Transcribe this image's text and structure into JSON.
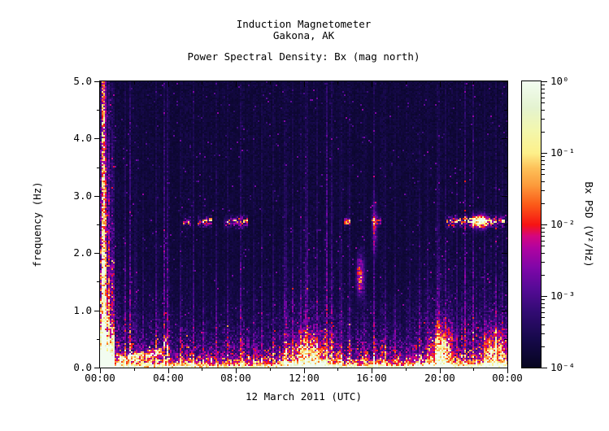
{
  "header": {
    "title_line1": "Induction Magnetometer",
    "title_line2": "Gakona, AK",
    "subtitle": "Power Spectral Density: Bx (mag north)"
  },
  "chart_data": {
    "type": "heatmap",
    "subtype": "spectrogram",
    "title": "Induction Magnetometer Gakona, AK",
    "subtitle": "Power Spectral Density: Bx (mag north)",
    "xlabel": "12 March 2011 (UTC)",
    "ylabel": "frequency (Hz)",
    "x_range_hours": [
      0,
      24
    ],
    "y_range_hz": [
      0.0,
      5.0
    ],
    "z_range_v2hz": [
      "1e-4",
      "1e0"
    ],
    "x_ticks": [
      {
        "hour": 0,
        "label": "00:00"
      },
      {
        "hour": 4,
        "label": "04:00"
      },
      {
        "hour": 8,
        "label": "08:00"
      },
      {
        "hour": 12,
        "label": "12:00"
      },
      {
        "hour": 16,
        "label": "16:00"
      },
      {
        "hour": 20,
        "label": "20:00"
      },
      {
        "hour": 24,
        "label": "00:00"
      }
    ],
    "x_minor_tick_hours": [
      2,
      6,
      10,
      14,
      18,
      22
    ],
    "y_ticks": [
      {
        "hz": 0,
        "label": "0.0"
      },
      {
        "hz": 1,
        "label": "1.0"
      },
      {
        "hz": 2,
        "label": "2.0"
      },
      {
        "hz": 3,
        "label": "3.0"
      },
      {
        "hz": 4,
        "label": "4.0"
      },
      {
        "hz": 5,
        "label": "5.0"
      }
    ],
    "y_minor_tick_hz": [
      0.5,
      1.5,
      2.5,
      3.5,
      4.5
    ],
    "colorbar": {
      "title": "Bx PSD (V²/Hz)",
      "tick_labels": [
        "10⁰",
        "10⁻¹",
        "10⁻²",
        "10⁻³",
        "10⁻⁴"
      ],
      "tick_exponents": [
        0,
        -1,
        -2,
        -3,
        -4
      ],
      "stops": [
        [
          0.0,
          "#06051f"
        ],
        [
          0.1,
          "#16094a"
        ],
        [
          0.2,
          "#330b74"
        ],
        [
          0.28,
          "#570a97"
        ],
        [
          0.35,
          "#7f06a8"
        ],
        [
          0.42,
          "#b103a0"
        ],
        [
          0.46,
          "#d40680"
        ],
        [
          0.5,
          "#f61313"
        ],
        [
          0.57,
          "#fb5a18"
        ],
        [
          0.64,
          "#fc9c3c"
        ],
        [
          0.7,
          "#fdc25a"
        ],
        [
          0.75,
          "#fdf08a"
        ],
        [
          0.83,
          "#f3f7ad"
        ],
        [
          0.91,
          "#e4f3d0"
        ],
        [
          1.0,
          "#f2fcf0"
        ]
      ]
    },
    "features": {
      "background_level": 0.035,
      "bottom_band": {
        "f_scale_hz": 0.07,
        "hours": [
          1.0,
          0.8,
          0.52,
          0.55,
          0.6,
          0.52,
          0.5,
          0.55,
          0.58,
          0.48,
          0.5,
          0.8,
          0.95,
          0.85,
          0.55,
          0.5,
          0.68,
          0.62,
          0.5,
          0.72,
          0.92,
          0.6,
          0.68,
          0.75,
          0.7
        ]
      },
      "haze": {
        "amp": 0.4,
        "hours": [
          2.6,
          0.75,
          0.5,
          0.52,
          0.6,
          0.45,
          0.42,
          0.46,
          0.55,
          0.45,
          0.45,
          0.6,
          0.8,
          0.7,
          0.55,
          0.5,
          0.6,
          0.5,
          0.45,
          0.6,
          0.85,
          0.65,
          0.7,
          0.72,
          0.65
        ]
      },
      "stripes": [
        [
          0.18,
          0.07,
          0.8,
          8
        ],
        [
          0.32,
          0.05,
          0.45,
          6
        ],
        [
          0.55,
          0.06,
          0.3,
          3
        ],
        [
          1.45,
          0.055,
          0.22,
          2.5
        ],
        [
          1.75,
          0.055,
          0.28,
          4
        ],
        [
          2.1,
          0.055,
          0.18,
          2
        ],
        [
          2.5,
          0.055,
          0.15,
          2
        ],
        [
          3.3,
          0.055,
          0.18,
          2.5
        ],
        [
          3.8,
          0.06,
          0.3,
          4
        ],
        [
          3.97,
          0.055,
          0.26,
          3
        ],
        [
          4.75,
          0.055,
          0.18,
          2
        ],
        [
          5.5,
          0.06,
          0.22,
          3
        ],
        [
          6.1,
          0.055,
          0.15,
          2
        ],
        [
          6.8,
          0.055,
          0.18,
          2.5
        ],
        [
          7.5,
          0.055,
          0.15,
          2
        ],
        [
          8.3,
          0.06,
          0.22,
          3
        ],
        [
          9.0,
          0.055,
          0.16,
          2
        ],
        [
          9.55,
          0.055,
          0.18,
          2.5
        ],
        [
          10.2,
          0.055,
          0.16,
          2
        ],
        [
          10.9,
          0.055,
          0.2,
          2.5
        ],
        [
          11.35,
          0.06,
          0.22,
          2.5
        ],
        [
          11.8,
          0.055,
          0.18,
          2
        ],
        [
          12.15,
          0.06,
          0.25,
          3
        ],
        [
          12.8,
          0.06,
          0.22,
          3
        ],
        [
          13.35,
          0.07,
          0.34,
          4.5
        ],
        [
          13.6,
          0.055,
          0.24,
          3
        ],
        [
          14.15,
          0.055,
          0.16,
          2
        ],
        [
          14.65,
          0.055,
          0.18,
          2.5
        ],
        [
          15.5,
          0.055,
          0.15,
          2
        ],
        [
          16.1,
          0.06,
          0.24,
          3
        ],
        [
          16.8,
          0.055,
          0.15,
          2
        ],
        [
          17.35,
          0.055,
          0.18,
          2
        ],
        [
          18.2,
          0.055,
          0.15,
          2
        ],
        [
          18.8,
          0.055,
          0.14,
          2
        ],
        [
          19.3,
          0.055,
          0.18,
          2.5
        ],
        [
          19.9,
          0.06,
          0.2,
          2.5
        ],
        [
          20.35,
          0.06,
          0.24,
          3
        ],
        [
          21.0,
          0.055,
          0.18,
          2.5
        ],
        [
          21.45,
          0.07,
          0.3,
          4
        ],
        [
          21.95,
          0.06,
          0.26,
          3.5
        ],
        [
          22.6,
          0.055,
          0.22,
          3
        ],
        [
          23.3,
          0.055,
          0.2,
          2.5
        ],
        [
          23.7,
          0.055,
          0.18,
          2.5
        ]
      ],
      "line_2p5hz": {
        "freq": 2.55,
        "sigma": 0.05,
        "segments": [
          [
            4.85,
            5.35,
            0.42
          ],
          [
            5.75,
            6.6,
            0.5
          ],
          [
            7.3,
            8.7,
            0.48
          ],
          [
            14.35,
            14.75,
            0.42
          ],
          [
            16.0,
            16.55,
            0.3
          ],
          [
            20.4,
            23.85,
            0.55
          ]
        ]
      },
      "blobs": [
        [
          15.3,
          1.62,
          0.14,
          0.22,
          0.55
        ],
        [
          22.35,
          2.55,
          0.28,
          0.08,
          0.75
        ],
        [
          16.15,
          2.45,
          0.12,
          0.28,
          0.28
        ],
        [
          20.1,
          0.3,
          0.4,
          0.3,
          0.5
        ],
        [
          12.4,
          0.25,
          0.8,
          0.25,
          0.35
        ],
        [
          23.2,
          0.3,
          0.5,
          0.25,
          0.35
        ]
      ],
      "burst": {
        "t_end": 0.85,
        "amp": 0.32,
        "f_scale": 2.8,
        "bottom_amp": 0.85,
        "bottom_f_scale": 0.4
      },
      "arc": {
        "t0": 1.1,
        "t1": 4.05,
        "f_start": 0.13,
        "slope_hz_per_hour": 0.05,
        "sigma": 0.05,
        "strength": 0.5,
        "hook_t": 3.85,
        "hook_amp": 0.25,
        "hook_sigma": 0.09
      }
    }
  }
}
